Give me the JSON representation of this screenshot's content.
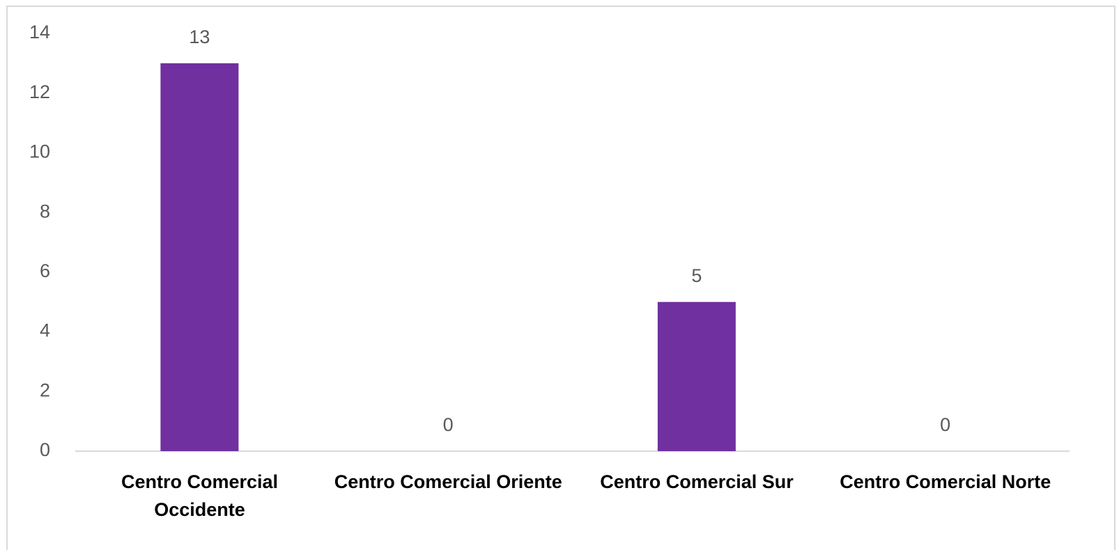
{
  "chart_data": {
    "type": "bar",
    "categories": [
      "Centro Comercial Occidente",
      "Centro Comercial Oriente",
      "Centro Comercial Sur",
      "Centro Comercial Norte"
    ],
    "values": [
      13,
      0,
      5,
      0
    ],
    "color": "#7030a0",
    "ylim": [
      0,
      14
    ],
    "yticks": [
      0,
      2,
      4,
      6,
      8,
      10,
      12,
      14
    ],
    "grid": false,
    "data_labels": true
  }
}
